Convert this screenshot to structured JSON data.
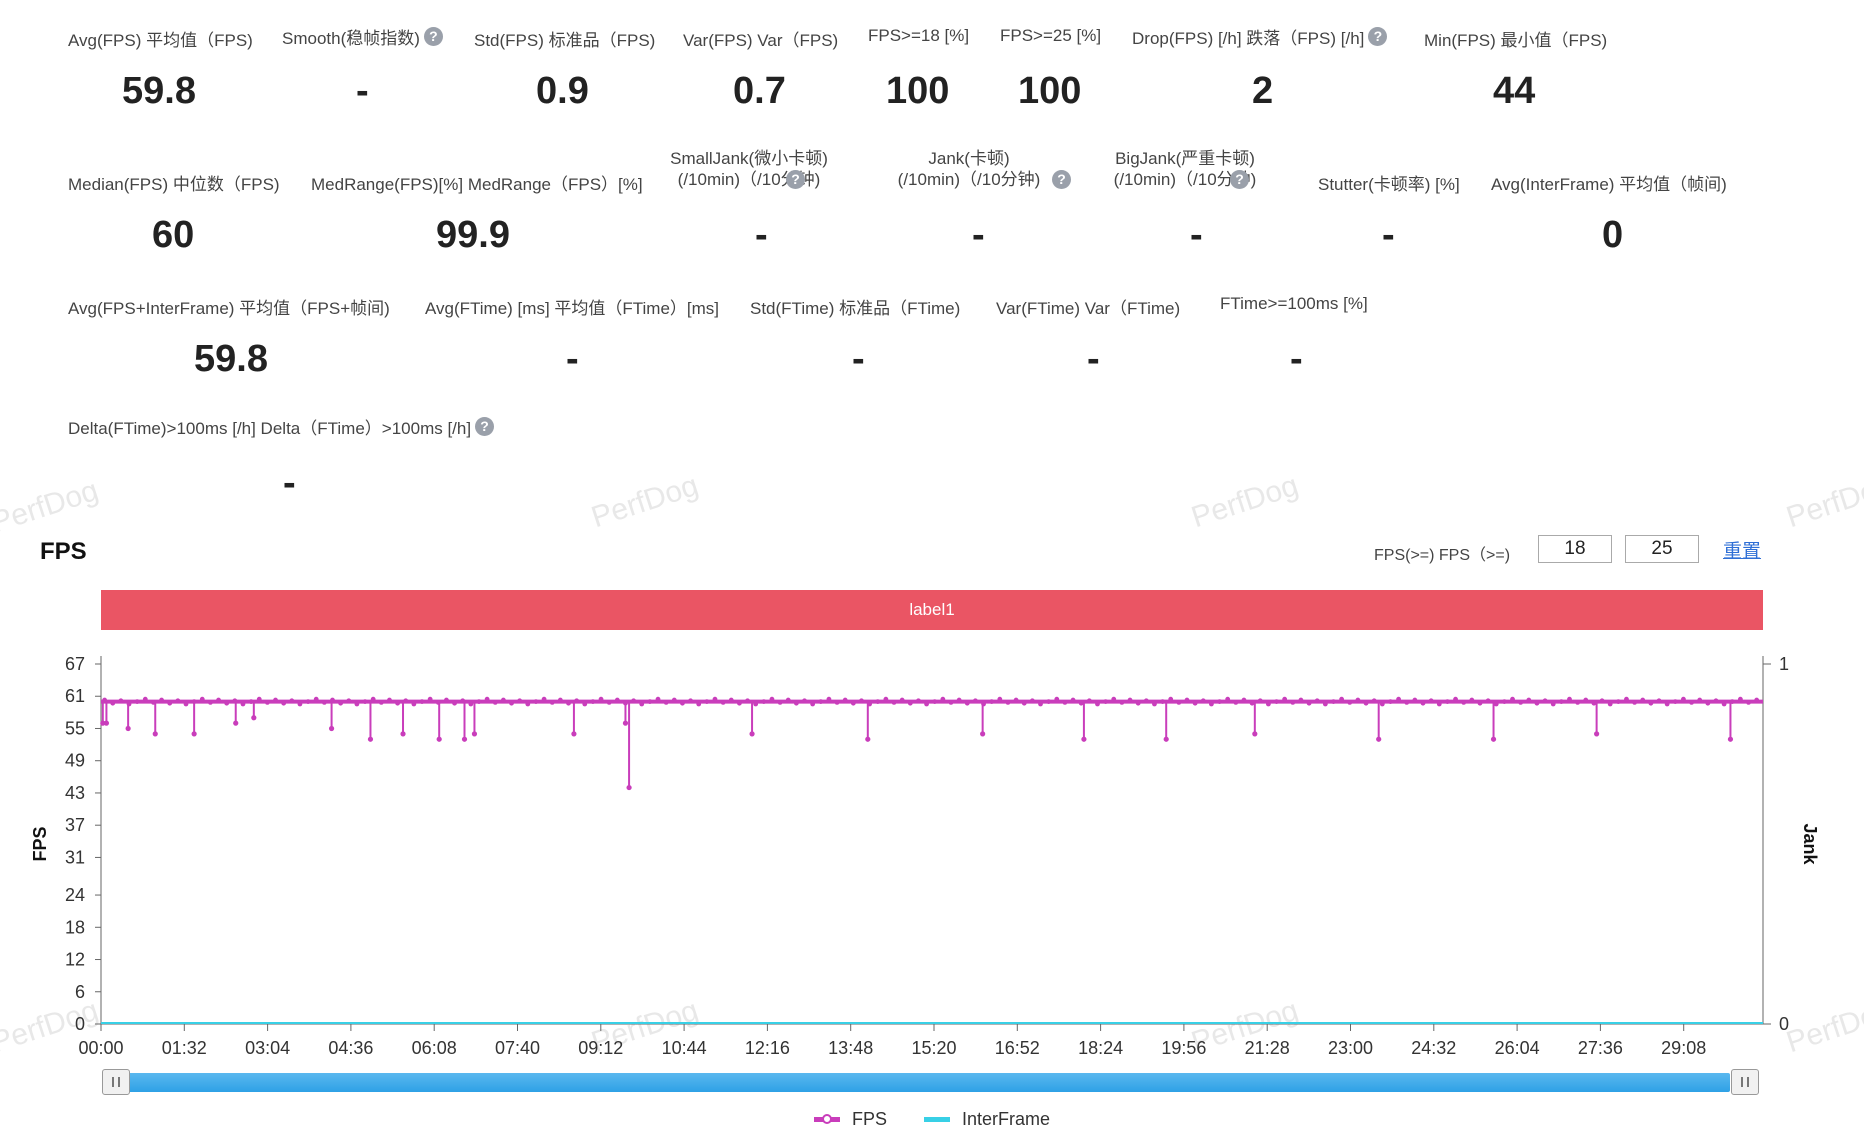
{
  "watermark": "PerfDog",
  "metrics_row1": [
    {
      "label": "Avg(FPS) 平均值（FPS)",
      "value": "59.8",
      "help": false
    },
    {
      "label": "Smooth(稳帧指数)",
      "value": "-",
      "help": true
    },
    {
      "label": "Std(FPS) 标准品（FPS)",
      "value": "0.9",
      "help": false
    },
    {
      "label": "Var(FPS) Var（FPS)",
      "value": "0.7",
      "help": false
    },
    {
      "label": "FPS>=18 [%]",
      "value": "100",
      "help": false
    },
    {
      "label": "FPS>=25 [%]",
      "value": "100",
      "help": false
    },
    {
      "label": "Drop(FPS) [/h] 跌落（FPS) [/h]",
      "value": "2",
      "help": true
    },
    {
      "label": "Min(FPS) 最小值（FPS)",
      "value": "44",
      "help": false
    }
  ],
  "metrics_row2": [
    {
      "label": "Median(FPS) 中位数（FPS)",
      "value": "60"
    },
    {
      "label": "MedRange(FPS)[%] MedRange（FPS）[%]",
      "value": "99.9"
    },
    {
      "label_line1": "SmallJank(微小卡顿)",
      "label_line2": "(/10min)（/10分钟)",
      "value": "-"
    },
    {
      "label_line1": "Jank(卡顿)",
      "label_line2": "(/10min)（/10分钟)",
      "value": "-"
    },
    {
      "label_line1": "BigJank(严重卡顿)",
      "label_line2": "(/10min)（/10分钟)",
      "value": "-"
    },
    {
      "label": "Stutter(卡顿率) [%]",
      "value": "-"
    },
    {
      "label": "Avg(InterFrame) 平均值（帧间)",
      "value": "0"
    }
  ],
  "metrics_row3": [
    {
      "label": "Avg(FPS+InterFrame) 平均值（FPS+帧间)",
      "value": "59.8"
    },
    {
      "label": "Avg(FTime) [ms] 平均值（FTime）[ms]",
      "value": "-"
    },
    {
      "label": "Std(FTime) 标准品（FTime)",
      "value": "-"
    },
    {
      "label": "Var(FTime) Var（FTime)",
      "value": "-"
    },
    {
      "label": "FTime>=100ms [%]",
      "value": "-"
    }
  ],
  "metrics_row4": [
    {
      "label": "Delta(FTime)>100ms [/h] Delta（FTime）>100ms [/h]",
      "value": "-"
    }
  ],
  "section_title": "FPS",
  "threshold": {
    "label": "FPS(>=) FPS（>=)",
    "low": "18",
    "high": "25",
    "reset": "重置"
  },
  "label_bar": "label1",
  "legend": {
    "fps": "FPS",
    "interframe": "InterFrame"
  },
  "colors": {
    "fps": "#c93dbb",
    "interframe": "#38d0e6",
    "label_bar": "#ea5564",
    "slider": "#2ea1e6"
  },
  "chart_data": {
    "type": "line",
    "ylabel": "FPS",
    "y2label": "Jank",
    "ylim": [
      0,
      67
    ],
    "y_ticks": [
      0,
      6,
      12,
      18,
      24,
      31,
      37,
      43,
      49,
      55,
      61,
      67
    ],
    "y2_ticks": [
      0,
      1
    ],
    "x_ticks": [
      "00:00",
      "01:32",
      "03:04",
      "04:36",
      "06:08",
      "07:40",
      "09:12",
      "10:44",
      "12:16",
      "13:48",
      "15:20",
      "16:52",
      "18:24",
      "19:56",
      "21:28",
      "23:00",
      "24:32",
      "26:04",
      "27:36",
      "29:08"
    ],
    "x_range_seconds": [
      0,
      1838
    ],
    "series": [
      {
        "name": "FPS",
        "baseline": 60,
        "dips": [
          {
            "t": 2,
            "v": 56
          },
          {
            "t": 6,
            "v": 56
          },
          {
            "t": 30,
            "v": 55
          },
          {
            "t": 60,
            "v": 54
          },
          {
            "t": 103,
            "v": 54
          },
          {
            "t": 149,
            "v": 56
          },
          {
            "t": 169,
            "v": 57
          },
          {
            "t": 255,
            "v": 55
          },
          {
            "t": 298,
            "v": 53
          },
          {
            "t": 334,
            "v": 54
          },
          {
            "t": 374,
            "v": 53
          },
          {
            "t": 402,
            "v": 53
          },
          {
            "t": 413,
            "v": 54
          },
          {
            "t": 523,
            "v": 54
          },
          {
            "t": 580,
            "v": 56
          },
          {
            "t": 584,
            "v": 44
          },
          {
            "t": 720,
            "v": 54
          },
          {
            "t": 848,
            "v": 53
          },
          {
            "t": 975,
            "v": 54
          },
          {
            "t": 1087,
            "v": 53
          },
          {
            "t": 1178,
            "v": 53
          },
          {
            "t": 1276,
            "v": 54
          },
          {
            "t": 1413,
            "v": 53
          },
          {
            "t": 1540,
            "v": 53
          },
          {
            "t": 1654,
            "v": 54
          },
          {
            "t": 1802,
            "v": 53
          }
        ]
      },
      {
        "name": "InterFrame",
        "values_constant": 0
      }
    ]
  }
}
